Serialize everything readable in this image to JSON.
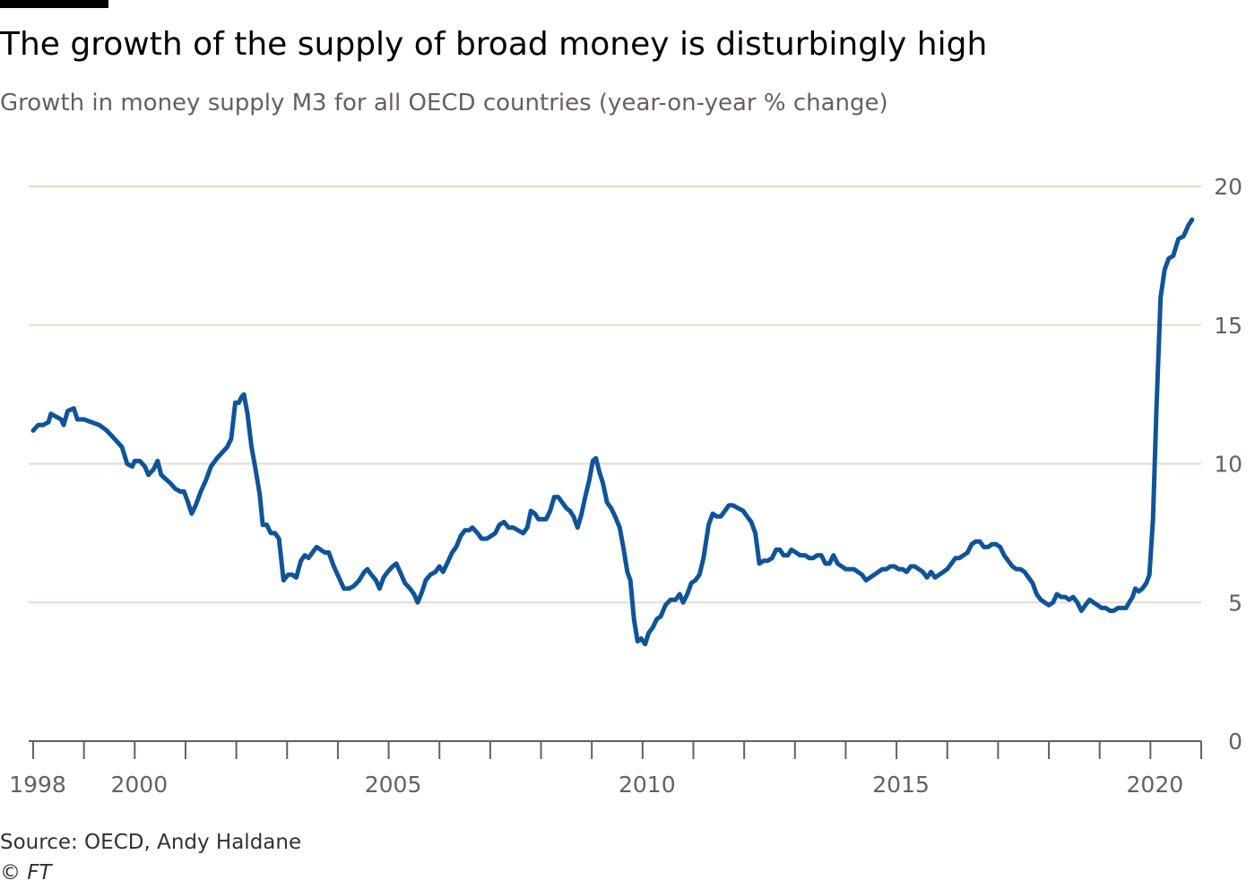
{
  "title": "The growth of the supply of broad money is disturbingly high",
  "subtitle": "Growth in money supply M3 for all OECD countries (year-on-year % change)",
  "source": "Source: OECD, Andy Haldane",
  "copyright": "© FT",
  "colors": {
    "line": "#0f5499",
    "grid": "#e6d9ce",
    "tick_text": "#66605c",
    "axis": "#66605c"
  },
  "chart_data": {
    "type": "line",
    "title": "The growth of the supply of broad money is disturbingly high",
    "subtitle": "Growth in money supply M3 for all OECD countries (year-on-year % change)",
    "xlabel": "",
    "ylabel": "",
    "xlim": [
      1998.0,
      2021.0
    ],
    "ylim": [
      0,
      20
    ],
    "y_ticks": [
      0,
      5,
      10,
      15,
      20
    ],
    "y_tick_labels": [
      "0",
      "5",
      "10",
      "15",
      "20"
    ],
    "x_tick_labels": [
      {
        "x": 1998,
        "label": "1998"
      },
      {
        "x": 2000,
        "label": "2000"
      },
      {
        "x": 2005,
        "label": "2005"
      },
      {
        "x": 2010,
        "label": "2010"
      },
      {
        "x": 2015,
        "label": "2015"
      },
      {
        "x": 2020,
        "label": "2020"
      }
    ],
    "x_minor_ticks": [
      1998,
      1999,
      2000,
      2001,
      2002,
      2003,
      2004,
      2005,
      2006,
      2007,
      2008,
      2009,
      2010,
      2011,
      2012,
      2013,
      2014,
      2015,
      2016,
      2017,
      2018,
      2019,
      2020,
      2021
    ],
    "y_axis_position": "right",
    "grid": true,
    "series": [
      {
        "points": [
          [
            1998.0,
            11.2
          ],
          [
            1998.1,
            11.4
          ],
          [
            1998.2,
            11.4
          ],
          [
            1998.3,
            11.5
          ],
          [
            1998.35,
            11.8
          ],
          [
            1998.45,
            11.7
          ],
          [
            1998.55,
            11.6
          ],
          [
            1998.6,
            11.4
          ],
          [
            1998.68,
            11.9
          ],
          [
            1998.8,
            12.0
          ],
          [
            1998.87,
            11.6
          ],
          [
            1999.0,
            11.6
          ],
          [
            1999.15,
            11.5
          ],
          [
            1999.3,
            11.4
          ],
          [
            1999.45,
            11.2
          ],
          [
            1999.55,
            11.0
          ],
          [
            1999.65,
            10.8
          ],
          [
            1999.75,
            10.6
          ],
          [
            1999.85,
            10.0
          ],
          [
            1999.95,
            9.9
          ],
          [
            2000.0,
            10.1
          ],
          [
            2000.1,
            10.1
          ],
          [
            2000.2,
            9.9
          ],
          [
            2000.27,
            9.6
          ],
          [
            2000.37,
            9.8
          ],
          [
            2000.45,
            10.1
          ],
          [
            2000.52,
            9.6
          ],
          [
            2000.7,
            9.3
          ],
          [
            2000.8,
            9.1
          ],
          [
            2000.9,
            9.0
          ],
          [
            2000.97,
            9.0
          ],
          [
            2001.05,
            8.6
          ],
          [
            2001.12,
            8.2
          ],
          [
            2001.2,
            8.5
          ],
          [
            2001.3,
            9.0
          ],
          [
            2001.4,
            9.4
          ],
          [
            2001.5,
            9.9
          ],
          [
            2001.62,
            10.2
          ],
          [
            2001.72,
            10.4
          ],
          [
            2001.82,
            10.6
          ],
          [
            2001.9,
            10.9
          ],
          [
            2001.98,
            12.2
          ],
          [
            2002.05,
            12.2
          ],
          [
            2002.1,
            12.4
          ],
          [
            2002.15,
            12.5
          ],
          [
            2002.22,
            11.8
          ],
          [
            2002.3,
            10.6
          ],
          [
            2002.38,
            9.8
          ],
          [
            2002.46,
            8.9
          ],
          [
            2002.52,
            7.8
          ],
          [
            2002.6,
            7.8
          ],
          [
            2002.68,
            7.5
          ],
          [
            2002.76,
            7.5
          ],
          [
            2002.84,
            7.3
          ],
          [
            2002.93,
            5.8
          ],
          [
            2003.02,
            6.0
          ],
          [
            2003.1,
            6.0
          ],
          [
            2003.18,
            5.9
          ],
          [
            2003.27,
            6.5
          ],
          [
            2003.35,
            6.7
          ],
          [
            2003.42,
            6.6
          ],
          [
            2003.5,
            6.8
          ],
          [
            2003.58,
            7.0
          ],
          [
            2003.66,
            6.9
          ],
          [
            2003.74,
            6.8
          ],
          [
            2003.82,
            6.8
          ],
          [
            2003.92,
            6.3
          ],
          [
            2004.02,
            5.9
          ],
          [
            2004.12,
            5.5
          ],
          [
            2004.22,
            5.5
          ],
          [
            2004.32,
            5.6
          ],
          [
            2004.42,
            5.8
          ],
          [
            2004.52,
            6.1
          ],
          [
            2004.58,
            6.2
          ],
          [
            2004.66,
            6.0
          ],
          [
            2004.75,
            5.8
          ],
          [
            2004.82,
            5.5
          ],
          [
            2004.9,
            5.9
          ],
          [
            2004.98,
            6.1
          ],
          [
            2005.08,
            6.3
          ],
          [
            2005.15,
            6.4
          ],
          [
            2005.25,
            6.0
          ],
          [
            2005.32,
            5.7
          ],
          [
            2005.42,
            5.5
          ],
          [
            2005.5,
            5.3
          ],
          [
            2005.57,
            5.0
          ],
          [
            2005.66,
            5.4
          ],
          [
            2005.73,
            5.8
          ],
          [
            2005.82,
            6.0
          ],
          [
            2005.92,
            6.1
          ],
          [
            2006.0,
            6.3
          ],
          [
            2006.07,
            6.1
          ],
          [
            2006.15,
            6.4
          ],
          [
            2006.25,
            6.8
          ],
          [
            2006.33,
            7.0
          ],
          [
            2006.42,
            7.4
          ],
          [
            2006.5,
            7.6
          ],
          [
            2006.58,
            7.6
          ],
          [
            2006.65,
            7.7
          ],
          [
            2006.75,
            7.5
          ],
          [
            2006.83,
            7.3
          ],
          [
            2006.93,
            7.3
          ],
          [
            2007.02,
            7.4
          ],
          [
            2007.1,
            7.5
          ],
          [
            2007.18,
            7.8
          ],
          [
            2007.27,
            7.9
          ],
          [
            2007.36,
            7.7
          ],
          [
            2007.45,
            7.7
          ],
          [
            2007.55,
            7.6
          ],
          [
            2007.65,
            7.5
          ],
          [
            2007.73,
            7.7
          ],
          [
            2007.8,
            8.3
          ],
          [
            2007.88,
            8.2
          ],
          [
            2007.95,
            8.0
          ],
          [
            2008.02,
            8.0
          ],
          [
            2008.1,
            8.0
          ],
          [
            2008.18,
            8.3
          ],
          [
            2008.26,
            8.8
          ],
          [
            2008.34,
            8.8
          ],
          [
            2008.42,
            8.6
          ],
          [
            2008.5,
            8.4
          ],
          [
            2008.57,
            8.3
          ],
          [
            2008.64,
            8.1
          ],
          [
            2008.72,
            7.7
          ],
          [
            2008.8,
            8.2
          ],
          [
            2008.87,
            8.8
          ],
          [
            2008.95,
            9.4
          ],
          [
            2009.02,
            10.1
          ],
          [
            2009.08,
            10.2
          ],
          [
            2009.15,
            9.7
          ],
          [
            2009.22,
            9.3
          ],
          [
            2009.3,
            8.6
          ],
          [
            2009.38,
            8.4
          ],
          [
            2009.46,
            8.1
          ],
          [
            2009.55,
            7.7
          ],
          [
            2009.62,
            7.0
          ],
          [
            2009.7,
            6.1
          ],
          [
            2009.76,
            5.8
          ],
          [
            2009.83,
            4.4
          ],
          [
            2009.9,
            3.6
          ],
          [
            2009.97,
            3.7
          ],
          [
            2010.05,
            3.5
          ],
          [
            2010.12,
            3.9
          ],
          [
            2010.2,
            4.1
          ],
          [
            2010.28,
            4.4
          ],
          [
            2010.36,
            4.5
          ],
          [
            2010.45,
            4.9
          ],
          [
            2010.55,
            5.1
          ],
          [
            2010.65,
            5.1
          ],
          [
            2010.73,
            5.3
          ],
          [
            2010.8,
            5.0
          ],
          [
            2010.88,
            5.3
          ],
          [
            2010.96,
            5.7
          ],
          [
            2011.04,
            5.8
          ],
          [
            2011.12,
            6.0
          ],
          [
            2011.2,
            6.6
          ],
          [
            2011.3,
            7.8
          ],
          [
            2011.38,
            8.2
          ],
          [
            2011.46,
            8.1
          ],
          [
            2011.54,
            8.1
          ],
          [
            2011.62,
            8.3
          ],
          [
            2011.7,
            8.5
          ],
          [
            2011.78,
            8.5
          ],
          [
            2011.88,
            8.4
          ],
          [
            2011.98,
            8.3
          ],
          [
            2012.06,
            8.1
          ],
          [
            2012.14,
            7.9
          ],
          [
            2012.22,
            7.5
          ],
          [
            2012.3,
            6.4
          ],
          [
            2012.38,
            6.5
          ],
          [
            2012.46,
            6.5
          ],
          [
            2012.55,
            6.6
          ],
          [
            2012.63,
            6.9
          ],
          [
            2012.7,
            6.9
          ],
          [
            2012.78,
            6.7
          ],
          [
            2012.86,
            6.7
          ],
          [
            2012.93,
            6.9
          ],
          [
            2013.02,
            6.8
          ],
          [
            2013.1,
            6.7
          ],
          [
            2013.2,
            6.7
          ],
          [
            2013.28,
            6.6
          ],
          [
            2013.36,
            6.6
          ],
          [
            2013.44,
            6.7
          ],
          [
            2013.52,
            6.7
          ],
          [
            2013.6,
            6.4
          ],
          [
            2013.68,
            6.4
          ],
          [
            2013.76,
            6.7
          ],
          [
            2013.84,
            6.4
          ],
          [
            2013.92,
            6.3
          ],
          [
            2014.0,
            6.2
          ],
          [
            2014.08,
            6.2
          ],
          [
            2014.16,
            6.2
          ],
          [
            2014.24,
            6.1
          ],
          [
            2014.32,
            6.0
          ],
          [
            2014.4,
            5.8
          ],
          [
            2014.48,
            5.9
          ],
          [
            2014.56,
            6.0
          ],
          [
            2014.64,
            6.1
          ],
          [
            2014.72,
            6.2
          ],
          [
            2014.8,
            6.2
          ],
          [
            2014.88,
            6.3
          ],
          [
            2014.96,
            6.3
          ],
          [
            2015.04,
            6.2
          ],
          [
            2015.12,
            6.2
          ],
          [
            2015.2,
            6.1
          ],
          [
            2015.28,
            6.3
          ],
          [
            2015.36,
            6.3
          ],
          [
            2015.44,
            6.2
          ],
          [
            2015.52,
            6.1
          ],
          [
            2015.6,
            5.9
          ],
          [
            2015.68,
            6.1
          ],
          [
            2015.76,
            5.9
          ],
          [
            2015.84,
            6.0
          ],
          [
            2015.92,
            6.1
          ],
          [
            2016.0,
            6.2
          ],
          [
            2016.08,
            6.4
          ],
          [
            2016.16,
            6.6
          ],
          [
            2016.24,
            6.6
          ],
          [
            2016.32,
            6.7
          ],
          [
            2016.4,
            6.8
          ],
          [
            2016.48,
            7.1
          ],
          [
            2016.56,
            7.2
          ],
          [
            2016.64,
            7.2
          ],
          [
            2016.72,
            7.0
          ],
          [
            2016.8,
            7.0
          ],
          [
            2016.88,
            7.1
          ],
          [
            2016.96,
            7.1
          ],
          [
            2017.04,
            7.0
          ],
          [
            2017.12,
            6.7
          ],
          [
            2017.2,
            6.5
          ],
          [
            2017.28,
            6.3
          ],
          [
            2017.36,
            6.2
          ],
          [
            2017.44,
            6.2
          ],
          [
            2017.52,
            6.1
          ],
          [
            2017.6,
            5.9
          ],
          [
            2017.68,
            5.7
          ],
          [
            2017.76,
            5.3
          ],
          [
            2017.84,
            5.1
          ],
          [
            2017.92,
            5.0
          ],
          [
            2018.0,
            4.9
          ],
          [
            2018.08,
            5.0
          ],
          [
            2018.16,
            5.3
          ],
          [
            2018.24,
            5.2
          ],
          [
            2018.32,
            5.2
          ],
          [
            2018.4,
            5.1
          ],
          [
            2018.48,
            5.2
          ],
          [
            2018.56,
            5.0
          ],
          [
            2018.64,
            4.7
          ],
          [
            2018.72,
            4.9
          ],
          [
            2018.8,
            5.1
          ],
          [
            2018.88,
            5.0
          ],
          [
            2018.96,
            4.9
          ],
          [
            2019.04,
            4.8
          ],
          [
            2019.12,
            4.8
          ],
          [
            2019.2,
            4.7
          ],
          [
            2019.28,
            4.7
          ],
          [
            2019.36,
            4.8
          ],
          [
            2019.44,
            4.8
          ],
          [
            2019.52,
            4.8
          ],
          [
            2019.58,
            5.0
          ],
          [
            2019.65,
            5.2
          ],
          [
            2019.7,
            5.5
          ],
          [
            2019.77,
            5.4
          ],
          [
            2019.84,
            5.5
          ],
          [
            2019.92,
            5.7
          ],
          [
            2019.98,
            6.0
          ],
          [
            2020.05,
            8.0
          ],
          [
            2020.12,
            12.0
          ],
          [
            2020.2,
            16.0
          ],
          [
            2020.28,
            17.0
          ],
          [
            2020.36,
            17.4
          ],
          [
            2020.45,
            17.5
          ],
          [
            2020.55,
            18.1
          ],
          [
            2020.65,
            18.2
          ],
          [
            2020.75,
            18.6
          ],
          [
            2020.82,
            18.8
          ]
        ]
      }
    ]
  }
}
